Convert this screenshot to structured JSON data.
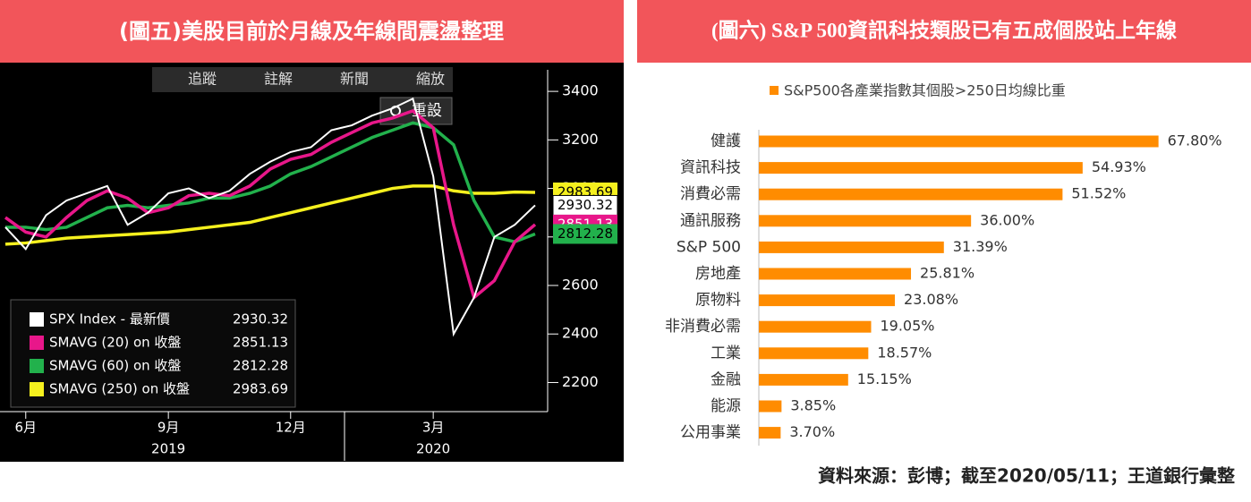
{
  "chart_data": [
    {
      "type": "line",
      "title": "(圖五)美股目前於月線及年線間震盪整理",
      "toolbar": [
        "追蹤",
        "註解",
        "新聞",
        "縮放"
      ],
      "reset_button": "重設",
      "categories": [
        null,
        "6月",
        null,
        null,
        null,
        null,
        null,
        null,
        "9月",
        null,
        null,
        null,
        null,
        null,
        "12月",
        null,
        null,
        null,
        null,
        null,
        null,
        "3月",
        null,
        null,
        null,
        null,
        null
      ],
      "year_categories": [
        null,
        null,
        null,
        null,
        null,
        null,
        null,
        null,
        "2019",
        null,
        null,
        null,
        null,
        null,
        null,
        null,
        null,
        null,
        null,
        null,
        null,
        "2020",
        null,
        null,
        null,
        null,
        null
      ],
      "ylim": [
        2080,
        3500
      ],
      "yticks": [
        2200,
        2400,
        2600,
        2800,
        3000,
        3200,
        3400
      ],
      "series": [
        {
          "name": "SPX Index - 最新價",
          "color": "#ffffff",
          "legend_value": "2930.32",
          "values": [
            2840,
            2750,
            2890,
            2950,
            2980,
            3010,
            2850,
            2900,
            2980,
            3000,
            2960,
            2990,
            3060,
            3110,
            3150,
            3170,
            3240,
            3260,
            3300,
            3330,
            3370,
            3050,
            2400,
            2550,
            2800,
            2850,
            2930.32
          ]
        },
        {
          "name": "SMAVG (20)  on 收盤",
          "color": "#e8178a",
          "legend_value": "2851.13",
          "values": [
            2880,
            2820,
            2800,
            2880,
            2950,
            2990,
            2960,
            2900,
            2920,
            2970,
            2980,
            2970,
            3010,
            3080,
            3120,
            3140,
            3190,
            3230,
            3270,
            3290,
            3320,
            3250,
            2850,
            2550,
            2620,
            2780,
            2851.13
          ]
        },
        {
          "name": "SMAVG (60)  on 收盤",
          "color": "#22b14c",
          "legend_value": "2812.28",
          "values": [
            2840,
            2840,
            2830,
            2840,
            2880,
            2920,
            2930,
            2920,
            2930,
            2940,
            2960,
            2960,
            2980,
            3010,
            3060,
            3090,
            3130,
            3170,
            3210,
            3240,
            3270,
            3250,
            3180,
            2950,
            2800,
            2780,
            2812.28
          ]
        },
        {
          "name": "SMAVG (250)  on 收盤",
          "color": "#f5f01e",
          "legend_value": "2983.69",
          "values": [
            2770,
            2775,
            2785,
            2795,
            2800,
            2805,
            2810,
            2815,
            2820,
            2830,
            2840,
            2850,
            2860,
            2880,
            2900,
            2920,
            2940,
            2960,
            2980,
            3000,
            3010,
            3010,
            2990,
            2980,
            2980,
            2985,
            2983.69
          ]
        }
      ]
    },
    {
      "type": "bar",
      "title": "(圖六) S&P 500資訊科技類股已有五成個股站上年線",
      "series_name": "S&P500各產業指數其個股>250日均線比重",
      "color": "#ff8c00",
      "xlim": [
        0,
        80
      ],
      "categories": [
        "健護",
        "資訊科技",
        "消費必需",
        "通訊服務",
        "S&P 500",
        "房地產",
        "原物料",
        "非消費必需",
        "工業",
        "金融",
        "能源",
        "公用事業"
      ],
      "values": [
        67.8,
        54.93,
        51.52,
        36.0,
        31.39,
        25.81,
        23.08,
        19.05,
        18.57,
        15.15,
        3.85,
        3.7
      ],
      "value_labels": [
        "67.80%",
        "54.93%",
        "51.52%",
        "36.00%",
        "31.39%",
        "25.81%",
        "23.08%",
        "19.05%",
        "18.57%",
        "15.15%",
        "3.85%",
        "3.70%"
      ],
      "source": "資料來源：彭博；截至2020/05/11；王道銀行彙整"
    }
  ]
}
